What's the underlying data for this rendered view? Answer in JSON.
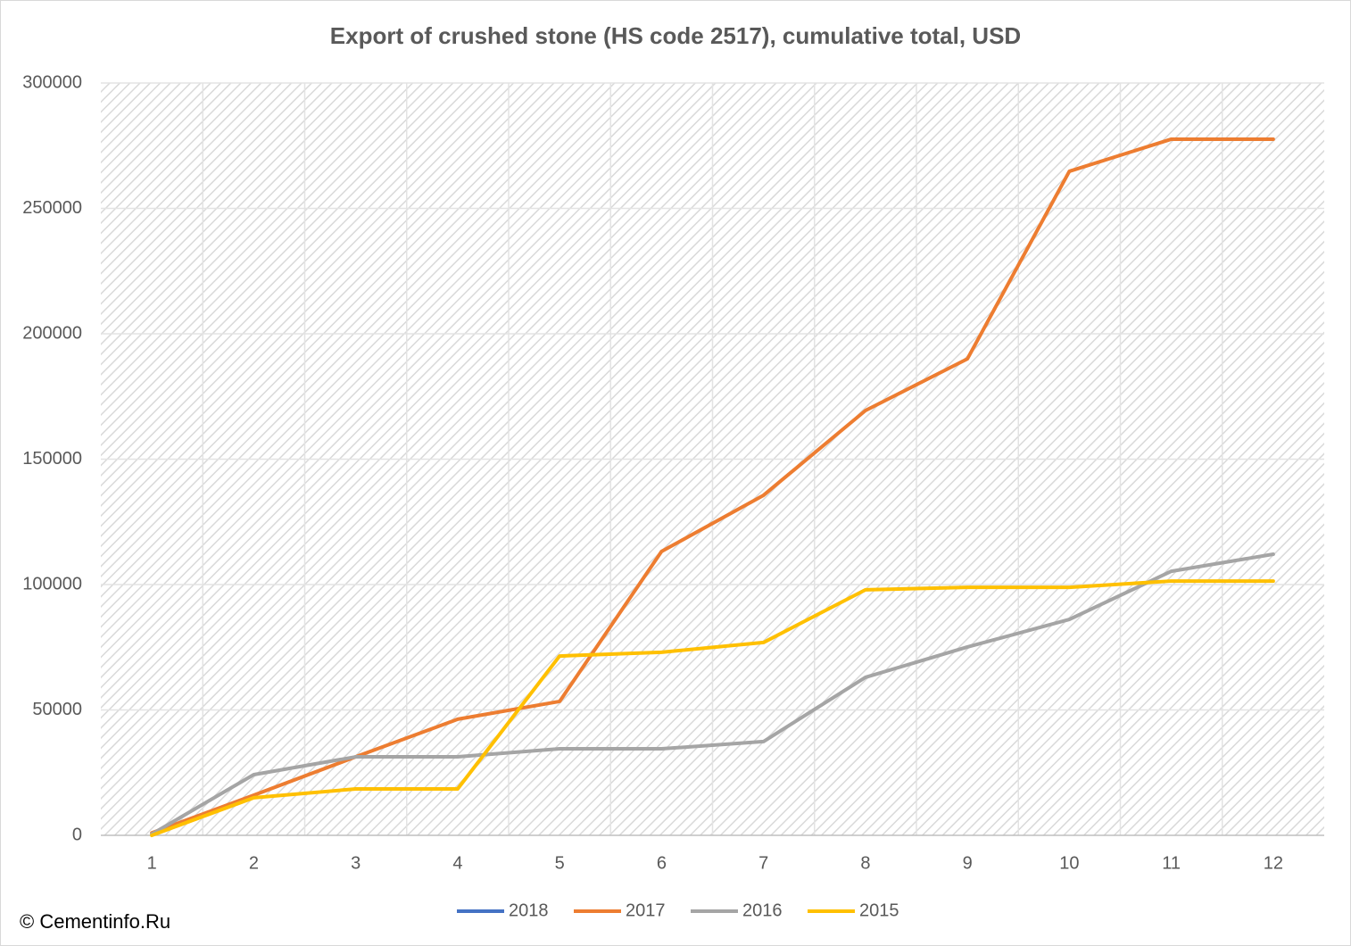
{
  "chart_data": {
    "type": "line",
    "title": "Export of crushed stone (HS code 2517), cumulative total, USD",
    "footer": "© Cementinfo.Ru",
    "categories": [
      "1",
      "2",
      "3",
      "4",
      "5",
      "6",
      "7",
      "8",
      "9",
      "10",
      "11",
      "12"
    ],
    "series": [
      {
        "name": "2018",
        "color": "#4472c4",
        "values": [
          null,
          null,
          null,
          null,
          null,
          null,
          null,
          null,
          null,
          null,
          null,
          null
        ]
      },
      {
        "name": "2017",
        "color": "#ed7d31",
        "values": [
          1000,
          16000,
          31300,
          46300,
          53400,
          113200,
          135600,
          169400,
          190000,
          264800,
          277600,
          277600
        ]
      },
      {
        "name": "2016",
        "color": "#a5a5a5",
        "values": [
          500,
          24200,
          31300,
          31300,
          34500,
          34500,
          37400,
          63000,
          75100,
          86100,
          105300,
          112100
        ]
      },
      {
        "name": "2015",
        "color": "#ffc000",
        "values": [
          0,
          15000,
          18500,
          18500,
          71500,
          73000,
          76900,
          97900,
          98900,
          98900,
          101400,
          101400
        ]
      }
    ],
    "ylim": [
      0,
      300000
    ],
    "yticks": [
      0,
      50000,
      100000,
      150000,
      200000,
      250000,
      300000
    ],
    "grid": true,
    "legend": "bottom"
  }
}
